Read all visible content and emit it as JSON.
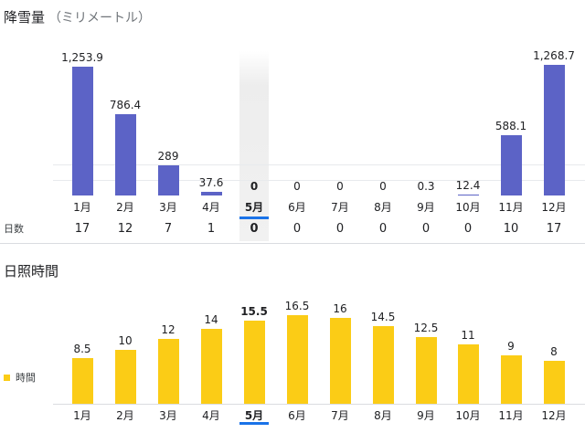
{
  "months": [
    "1月",
    "2月",
    "3月",
    "4月",
    "5月",
    "6月",
    "7月",
    "8月",
    "9月",
    "10月",
    "11月",
    "12月"
  ],
  "selected_month_index": 4,
  "snowfall": {
    "title": "降雪量",
    "unit": "（ミリメートル）",
    "values": [
      1253.9,
      786.4,
      289,
      37.6,
      0,
      0,
      0,
      0,
      0.3,
      12.4,
      588.1,
      1268.7
    ],
    "labels": [
      "1,253.9",
      "786.4",
      "289",
      "37.6",
      "0",
      "0",
      "0",
      "0",
      "0.3",
      "12.4",
      "588.1",
      "1,268.7"
    ],
    "color": "#5c63c6"
  },
  "snow_days": {
    "label": "日数",
    "values": [
      "17",
      "12",
      "7",
      "1",
      "0",
      "0",
      "0",
      "0",
      "0",
      "0",
      "10",
      "17"
    ]
  },
  "sunshine": {
    "title": "日照時間",
    "legend": "時間",
    "values": [
      8.5,
      10,
      12,
      14,
      15.5,
      16.5,
      16,
      14.5,
      12.5,
      11,
      9,
      8
    ],
    "labels": [
      "8.5",
      "10",
      "12",
      "14",
      "15.5",
      "16.5",
      "16",
      "14.5",
      "12.5",
      "11",
      "9",
      "8"
    ],
    "color": "#fbcc16"
  },
  "chart_data": [
    {
      "type": "bar",
      "title": "降雪量 （ミリメートル）",
      "categories": [
        "1月",
        "2月",
        "3月",
        "4月",
        "5月",
        "6月",
        "7月",
        "8月",
        "9月",
        "10月",
        "11月",
        "12月"
      ],
      "values": [
        1253.9,
        786.4,
        289,
        37.6,
        0,
        0,
        0,
        0,
        0.3,
        12.4,
        588.1,
        1268.7
      ],
      "days": [
        17,
        12,
        7,
        1,
        0,
        0,
        0,
        0,
        0,
        0,
        10,
        17
      ],
      "ylabel": "ミリメートル",
      "ylim": [
        0,
        1300
      ]
    },
    {
      "type": "bar",
      "title": "日照時間",
      "categories": [
        "1月",
        "2月",
        "3月",
        "4月",
        "5月",
        "6月",
        "7月",
        "8月",
        "9月",
        "10月",
        "11月",
        "12月"
      ],
      "series": [
        {
          "name": "時間",
          "values": [
            8.5,
            10,
            12,
            14,
            15.5,
            16.5,
            16,
            14.5,
            12.5,
            11,
            9,
            8
          ]
        }
      ],
      "ylim": [
        0,
        16.5
      ]
    }
  ]
}
